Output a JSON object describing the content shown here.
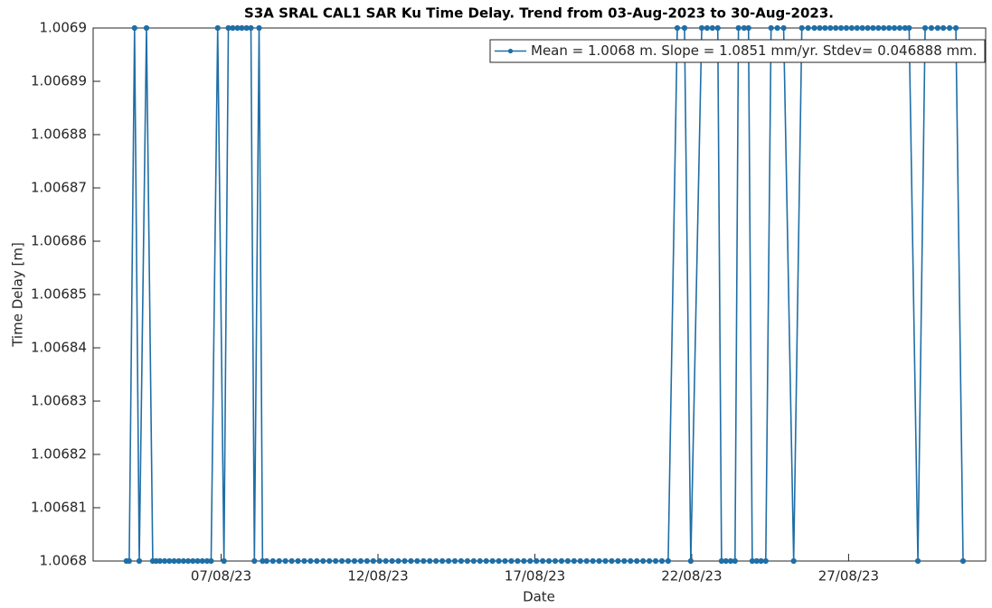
{
  "chart_data": {
    "type": "line",
    "title": "S3A SRAL CAL1 SAR Ku Time Delay. Trend from 03-Aug-2023 to 30-Aug-2023.",
    "xlabel": "Date",
    "ylabel": "Time Delay [m]",
    "xlim": [
      2.92,
      31.37
    ],
    "xticks": [
      {
        "value": 7,
        "label": "07/08/23"
      },
      {
        "value": 12,
        "label": "12/08/23"
      },
      {
        "value": 17,
        "label": "17/08/23"
      },
      {
        "value": 22,
        "label": "22/08/23"
      },
      {
        "value": 27,
        "label": "27/08/23"
      }
    ],
    "ylim": [
      1.0068,
      1.0069
    ],
    "yticks": [
      1.0068,
      1.00681,
      1.00682,
      1.00683,
      1.00684,
      1.00685,
      1.00686,
      1.00687,
      1.00688,
      1.00689,
      1.0069
    ],
    "grid": false,
    "legend": "northeast",
    "x": [
      3.98,
      4.07,
      4.24,
      4.39,
      4.62,
      4.82,
      4.93,
      5.05,
      5.2,
      5.35,
      5.5,
      5.65,
      5.8,
      5.95,
      6.1,
      6.25,
      6.4,
      6.55,
      6.68,
      6.89,
      7.09,
      7.23,
      7.37,
      7.52,
      7.66,
      7.81,
      7.95,
      8.06,
      8.21,
      8.32,
      8.45,
      8.65,
      8.85,
      9.05,
      9.25,
      9.45,
      9.65,
      9.85,
      10.05,
      10.25,
      10.45,
      10.65,
      10.85,
      11.05,
      11.25,
      11.45,
      11.65,
      11.85,
      12.05,
      12.25,
      12.45,
      12.65,
      12.85,
      13.05,
      13.25,
      13.45,
      13.65,
      13.85,
      14.05,
      14.25,
      14.45,
      14.65,
      14.85,
      15.05,
      15.25,
      15.45,
      15.65,
      15.85,
      16.05,
      16.25,
      16.45,
      16.65,
      16.85,
      17.05,
      17.25,
      17.45,
      17.65,
      17.85,
      18.05,
      18.25,
      18.45,
      18.65,
      18.85,
      19.05,
      19.25,
      19.45,
      19.65,
      19.85,
      20.05,
      20.25,
      20.45,
      20.65,
      20.85,
      21.05,
      21.25,
      21.54,
      21.77,
      21.97,
      22.32,
      22.49,
      22.66,
      22.83,
      22.95,
      23.09,
      23.24,
      23.38,
      23.49,
      23.67,
      23.81,
      23.93,
      24.07,
      24.21,
      24.36,
      24.53,
      24.73,
      24.93,
      25.25,
      25.51,
      25.71,
      25.91,
      26.08,
      26.25,
      26.42,
      26.59,
      26.76,
      26.93,
      27.1,
      27.27,
      27.44,
      27.61,
      27.78,
      27.95,
      28.12,
      28.29,
      28.46,
      28.63,
      28.8,
      28.93,
      29.21,
      29.44,
      29.64,
      29.84,
      30.02,
      30.22,
      30.42,
      30.65
    ],
    "series": [
      {
        "name": "Mean = 1.0068 m. Slope = 1.0851 mm/yr. Stdev= 0.046888 mm.",
        "color": "#1f6ea6",
        "values": [
          1.0068,
          1.0068,
          1.0069,
          1.0068,
          1.0069,
          1.0068,
          1.0068,
          1.0068,
          1.0068,
          1.0068,
          1.0068,
          1.0068,
          1.0068,
          1.0068,
          1.0068,
          1.0068,
          1.0068,
          1.0068,
          1.0068,
          1.0069,
          1.0068,
          1.0069,
          1.0069,
          1.0069,
          1.0069,
          1.0069,
          1.0069,
          1.0068,
          1.0069,
          1.0068,
          1.0068,
          1.0068,
          1.0068,
          1.0068,
          1.0068,
          1.0068,
          1.0068,
          1.0068,
          1.0068,
          1.0068,
          1.0068,
          1.0068,
          1.0068,
          1.0068,
          1.0068,
          1.0068,
          1.0068,
          1.0068,
          1.0068,
          1.0068,
          1.0068,
          1.0068,
          1.0068,
          1.0068,
          1.0068,
          1.0068,
          1.0068,
          1.0068,
          1.0068,
          1.0068,
          1.0068,
          1.0068,
          1.0068,
          1.0068,
          1.0068,
          1.0068,
          1.0068,
          1.0068,
          1.0068,
          1.0068,
          1.0068,
          1.0068,
          1.0068,
          1.0068,
          1.0068,
          1.0068,
          1.0068,
          1.0068,
          1.0068,
          1.0068,
          1.0068,
          1.0068,
          1.0068,
          1.0068,
          1.0068,
          1.0068,
          1.0068,
          1.0068,
          1.0068,
          1.0068,
          1.0068,
          1.0068,
          1.0068,
          1.0068,
          1.0068,
          1.0069,
          1.0069,
          1.0068,
          1.0069,
          1.0069,
          1.0069,
          1.0069,
          1.0068,
          1.0068,
          1.0068,
          1.0068,
          1.0069,
          1.0069,
          1.0069,
          1.0068,
          1.0068,
          1.0068,
          1.0068,
          1.0069,
          1.0069,
          1.0069,
          1.0068,
          1.0069,
          1.0069,
          1.0069,
          1.0069,
          1.0069,
          1.0069,
          1.0069,
          1.0069,
          1.0069,
          1.0069,
          1.0069,
          1.0069,
          1.0069,
          1.0069,
          1.0069,
          1.0069,
          1.0069,
          1.0069,
          1.0069,
          1.0069,
          1.0069,
          1.0068,
          1.0069,
          1.0069,
          1.0069,
          1.0069,
          1.0069,
          1.0069,
          1.0068
        ]
      }
    ]
  }
}
